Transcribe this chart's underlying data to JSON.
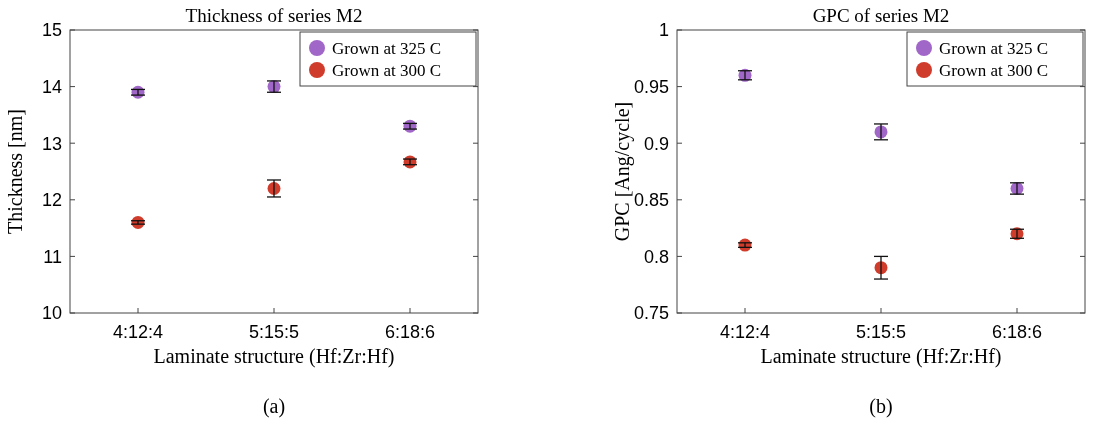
{
  "chart_data": [
    {
      "type": "scatter",
      "title": "Thickness of series M2",
      "xlabel": "Laminate structure (Hf:Zr:Hf)",
      "ylabel": "Thickness [nm]",
      "categories": [
        "4:12:4",
        "5:15:5",
        "6:18:6"
      ],
      "series": [
        {
          "name": "Grown at 325 C",
          "color": "#a066c8",
          "values": [
            13.9,
            14.0,
            13.3
          ],
          "errors": [
            0.05,
            0.1,
            0.05
          ]
        },
        {
          "name": "Grown at 300 C",
          "color": "#d03c2c",
          "values": [
            11.6,
            12.2,
            12.67
          ],
          "errors": [
            0.03,
            0.15,
            0.05
          ]
        }
      ],
      "ylim": [
        10,
        15
      ],
      "yticks": [
        10,
        11,
        12,
        13,
        14,
        15
      ],
      "legend": "top right",
      "marker": "circle",
      "annotations": [
        "(a)"
      ]
    },
    {
      "type": "scatter",
      "title": "GPC of series M2",
      "xlabel": "Laminate structure (Hf:Zr:Hf)",
      "ylabel": "GPC [Ang/cycle]",
      "categories": [
        "4:12:4",
        "5:15:5",
        "6:18:6"
      ],
      "series": [
        {
          "name": "Grown at 325 C",
          "color": "#a066c8",
          "values": [
            0.96,
            0.91,
            0.86
          ],
          "errors": [
            0.004,
            0.007,
            0.005
          ]
        },
        {
          "name": "Grown at 300 C",
          "color": "#d03c2c",
          "values": [
            0.81,
            0.79,
            0.82
          ],
          "errors": [
            0.002,
            0.01,
            0.004
          ]
        }
      ],
      "ylim": [
        0.75,
        1
      ],
      "yticks": [
        0.75,
        0.8,
        0.85,
        0.9,
        0.95,
        1
      ],
      "legend": "top right",
      "marker": "circle",
      "annotations": [
        "(b)"
      ]
    }
  ]
}
